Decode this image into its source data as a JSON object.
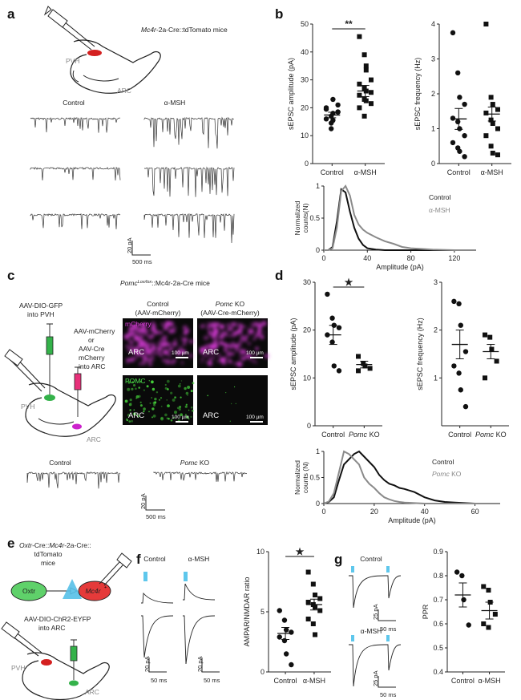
{
  "panels": {
    "a": {
      "label": "a",
      "mouse_prefix": "Mc4r",
      "mouse_suffix": "-2a-Cre::tdTomato mice",
      "region_top": "PVH",
      "region_bottom": "ARC",
      "col_control": "Control",
      "col_treat": "α-MSH",
      "scale_y": "20 pA",
      "scale_x": "500 ms"
    },
    "b": {
      "label": "b",
      "sig_amp": "**",
      "hist_legend_control": "Control",
      "hist_legend_treat": "α-MSH"
    },
    "c": {
      "label": "c",
      "mouse_gene": "Pomc",
      "mouse_sup": "Lox/lox",
      "mouse_rest": "::Mc4r-2a-Cre mice",
      "aav_pvh_1": "AAV-DIO-GFP",
      "aav_pvh_2": "into PVH",
      "aav_arc_1": "AAV-mCherry",
      "aav_arc_2": "or",
      "aav_arc_3": "AAV-Cre",
      "aav_arc_4": "mCherry",
      "aav_arc_5": "into ARC",
      "region_pvh": "PVH",
      "region_arc": "ARC",
      "col_control_1": "Control",
      "col_control_2": "(AAV-mCherry)",
      "col_ko_gene": "Pomc",
      "col_ko_1": " KO",
      "col_ko_2": "(AAV-Cre-mCherry)",
      "row_mcherry": "mCherry",
      "row_pomc": "POMC",
      "img_arc": "ARC",
      "img_scale": "100 µm",
      "trace_control": "Control",
      "trace_ko_gene": "Pomc",
      "trace_ko": " KO",
      "scale_y": "20 pA",
      "scale_x": "500 ms",
      "mcherry_color": "#d13ad1",
      "pomc_color": "#45d13a"
    },
    "d": {
      "label": "d",
      "sig_amp": "★",
      "hist_legend_control": "Control",
      "hist_legend_ko_gene": "Pomc",
      "hist_legend_ko": " KO"
    },
    "e": {
      "label": "e",
      "mouse_line_1a": "Oxtr",
      "mouse_line_1b": "-Cre::",
      "mouse_line_1c": "Mc4r",
      "mouse_line_1d": "-2a-Cre::",
      "mouse_line_2": "tdTomato",
      "mouse_line_3": "mice",
      "cell_left": "Oxtr",
      "cell_right": "Mc4r",
      "aav_1": "AAV-DIO-ChR2-EYFP",
      "aav_2": "into ARC",
      "region_pvh": "PVH",
      "region_arc": "ARC"
    },
    "f": {
      "label": "f",
      "trace_control": "Control",
      "trace_treat": "α-MSH",
      "scale_y": "20 pA",
      "scale_x": "50 ms",
      "sig": "★"
    },
    "g": {
      "label": "g",
      "trace_control": "Control",
      "trace_treat": "α-MSH",
      "scale_y": "25 pA",
      "scale_x": "50 ms"
    }
  },
  "chart_data": [
    {
      "id": "b-amplitude",
      "type": "scatter",
      "ylabel": "sEPSC amplitude (pA)",
      "categories": [
        "Control",
        "α-MSH"
      ],
      "ylim": [
        0,
        50
      ],
      "yticks": [
        0,
        10,
        20,
        30,
        40,
        50
      ],
      "series": [
        {
          "values": [
            19.5,
            17,
            15.5,
            18.5,
            16,
            12.5,
            18,
            21,
            20,
            14.5,
            23,
            18.5
          ]
        },
        {
          "values": [
            45.5,
            39,
            33.5,
            30,
            28.5,
            27,
            26,
            25.5,
            24.5,
            23,
            22.5,
            21.5,
            20,
            17,
            35
          ]
        }
      ],
      "means": [
        17.4,
        26
      ],
      "sem": [
        1,
        2
      ]
    },
    {
      "id": "b-frequency",
      "type": "scatter",
      "ylabel": "sEPSC frequency (Hz)",
      "categories": [
        "Control",
        "α-MSH"
      ],
      "ylim": [
        0,
        4
      ],
      "yticks": [
        0,
        1,
        2,
        3,
        4
      ],
      "series": [
        {
          "values": [
            3.75,
            2.6,
            1.9,
            1.7,
            1.3,
            1.2,
            1.0,
            0.8,
            0.6,
            0.45,
            0.35,
            0.2
          ]
        },
        {
          "values": [
            4.0,
            1.9,
            1.7,
            1.55,
            1.45,
            1.25,
            1.15,
            1.0,
            0.8,
            0.5,
            0.3,
            0.25
          ]
        }
      ],
      "means": [
        1.28,
        1.42
      ],
      "sem": [
        0.3,
        0.2
      ]
    },
    {
      "id": "b-histogram",
      "type": "line",
      "ylabel": "Normalized counts(N)",
      "xlabel": "Amplitude (pA)",
      "xlim": [
        0,
        140
      ],
      "xticks": [
        0,
        40,
        80,
        120
      ],
      "ylim": [
        0,
        1
      ],
      "yticks": [
        0,
        0.5,
        1
      ],
      "x": [
        0,
        4,
        8,
        12,
        16,
        20,
        24,
        28,
        32,
        36,
        40,
        48,
        56,
        64,
        72,
        80,
        100,
        120,
        140
      ],
      "series": [
        {
          "name": "Control",
          "values": [
            0,
            0,
            0.05,
            0.45,
            0.95,
            0.9,
            0.6,
            0.35,
            0.18,
            0.08,
            0.03,
            0.01,
            0,
            0,
            0,
            0,
            0,
            0,
            0
          ]
        },
        {
          "name": "α-MSH",
          "values": [
            0,
            0,
            0.03,
            0.35,
            0.92,
            1.0,
            0.85,
            0.55,
            0.4,
            0.32,
            0.27,
            0.2,
            0.14,
            0.1,
            0.05,
            0.03,
            0.01,
            0,
            0
          ]
        }
      ]
    },
    {
      "id": "d-amplitude",
      "type": "scatter",
      "ylabel": "sEPSC amplitude (pA)",
      "categories": [
        "Control",
        "Pomc KO"
      ],
      "ylim": [
        0,
        30
      ],
      "yticks": [
        0,
        10,
        20,
        30
      ],
      "series": [
        {
          "values": [
            27.5,
            22.5,
            21.0,
            20.5,
            19.0,
            17.5,
            12.5,
            11.5
          ]
        },
        {
          "values": [
            14.5,
            13.0,
            12.5,
            12.0,
            11.5
          ]
        }
      ],
      "means": [
        19,
        12.8
      ],
      "sem": [
        2,
        0.7
      ]
    },
    {
      "id": "d-frequency",
      "type": "scatter",
      "ylabel": "sEPSC frequency (Hz)",
      "categories": [
        "Control",
        "Pomc KO"
      ],
      "ylim": [
        0,
        3
      ],
      "yticks": [
        1,
        2,
        3
      ],
      "series": [
        {
          "values": [
            2.6,
            2.55,
            2.1,
            1.55,
            1.25,
            1.1,
            0.75,
            0.4
          ]
        },
        {
          "values": [
            1.9,
            1.85,
            1.6,
            1.35,
            1.0
          ]
        }
      ],
      "means": [
        1.7,
        1.55
      ],
      "sem": [
        0.3,
        0.15
      ]
    },
    {
      "id": "d-histogram",
      "type": "line",
      "ylabel": "Normalized counts (N)",
      "xlabel": "Amplitude (pA)",
      "xlim": [
        0,
        70
      ],
      "xticks": [
        0,
        20,
        40,
        60
      ],
      "ylim": [
        0,
        1
      ],
      "yticks": [
        0,
        0.5,
        1
      ],
      "x": [
        0,
        2,
        4,
        6,
        8,
        10,
        12,
        14,
        16,
        18,
        20,
        22,
        24,
        26,
        28,
        30,
        32,
        36,
        40,
        44,
        48,
        52,
        56,
        60,
        64,
        70
      ],
      "series": [
        {
          "name": "Control",
          "values": [
            0,
            0.03,
            0.12,
            0.45,
            0.75,
            0.85,
            0.95,
            1.0,
            0.9,
            0.8,
            0.7,
            0.55,
            0.45,
            0.38,
            0.35,
            0.3,
            0.28,
            0.22,
            0.12,
            0.06,
            0.03,
            0.02,
            0.01,
            0,
            0,
            0
          ]
        },
        {
          "name": "Pomc KO",
          "values": [
            0,
            0.04,
            0.2,
            0.6,
            1.0,
            0.95,
            0.85,
            0.75,
            0.5,
            0.38,
            0.3,
            0.2,
            0.12,
            0.08,
            0.05,
            0.03,
            0.02,
            0.01,
            0,
            0,
            0,
            0,
            0,
            0,
            0,
            0
          ]
        }
      ]
    },
    {
      "id": "f-ampar",
      "type": "scatter",
      "ylabel": "AMPAR/NMDAR ratio",
      "categories": [
        "Control",
        "α-MSH"
      ],
      "ylim": [
        0,
        10
      ],
      "yticks": [
        0,
        5,
        10
      ],
      "series": [
        {
          "values": [
            5.1,
            4.3,
            3.5,
            3.3,
            2.9,
            2.6,
            1.5,
            0.6
          ]
        },
        {
          "values": [
            8.3,
            7.3,
            6.4,
            6.1,
            5.8,
            5.6,
            5.4,
            5.1,
            4.4,
            4.0,
            3.1
          ]
        }
      ],
      "means": [
        3.2,
        5.6
      ],
      "sem": [
        0.5,
        0.45
      ]
    },
    {
      "id": "g-ppr",
      "type": "scatter",
      "ylabel": "PPR",
      "categories": [
        "Control",
        "α-MSH"
      ],
      "ylim": [
        0.4,
        0.9
      ],
      "yticks": [
        0.4,
        0.5,
        0.6,
        0.7,
        0.8,
        0.9
      ],
      "series": [
        {
          "values": [
            0.815,
            0.8,
            0.7,
            0.595
          ]
        },
        {
          "values": [
            0.755,
            0.74,
            0.69,
            0.64,
            0.6,
            0.585
          ]
        }
      ],
      "means": [
        0.72,
        0.655
      ],
      "sem": [
        0.05,
        0.035
      ]
    }
  ]
}
